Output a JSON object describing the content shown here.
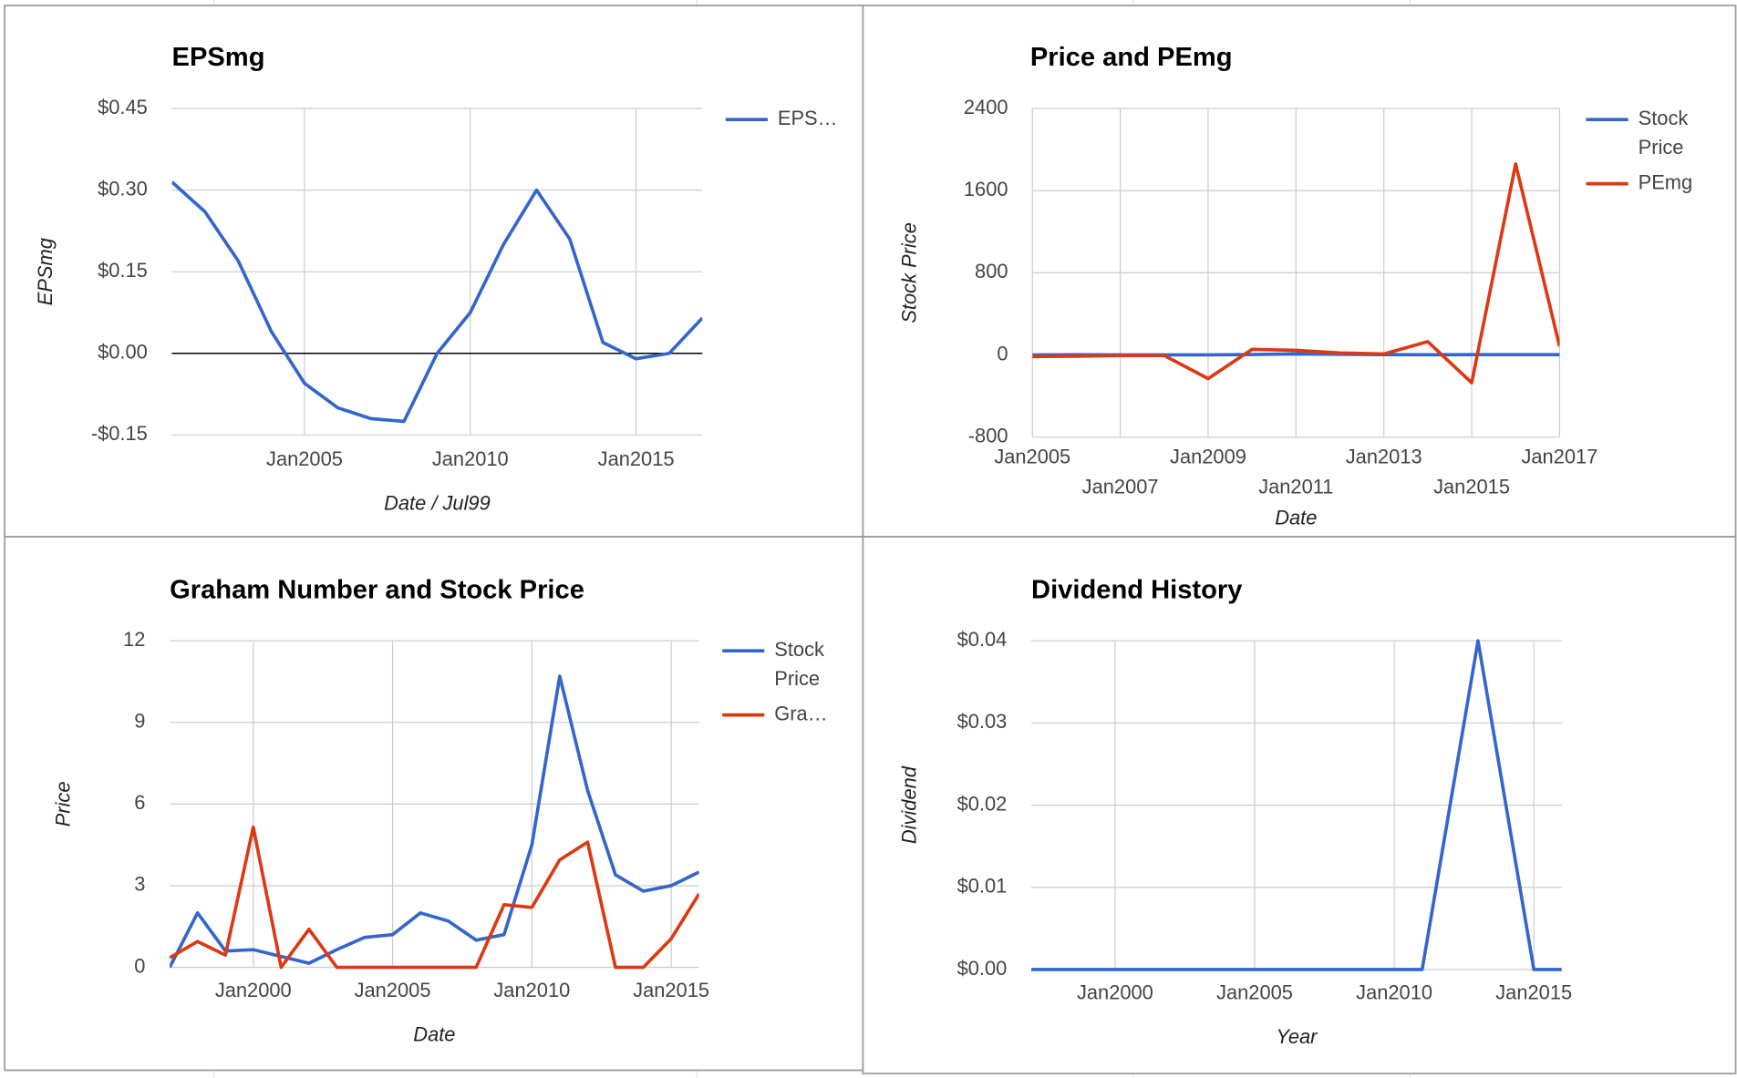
{
  "chart_data": [
    {
      "type": "line",
      "title": "EPSmg",
      "x_label": "Date / Jul99",
      "y_label": "EPSmg",
      "x": [
        2001,
        2002,
        2003,
        2004,
        2005,
        2006,
        2007,
        2008,
        2009,
        2010,
        2011,
        2012,
        2013,
        2014,
        2015,
        2016,
        2017
      ],
      "series": [
        {
          "name": "EPS…",
          "color": "#3366cc",
          "values": [
            0.315,
            0.26,
            0.17,
            0.04,
            -0.055,
            -0.1,
            -0.12,
            -0.125,
            0.0,
            0.075,
            0.2,
            0.3,
            0.21,
            0.02,
            -0.01,
            0.0,
            0.065
          ]
        }
      ],
      "xlim": [
        2001,
        2017
      ],
      "xticks": [
        {
          "value": 2005,
          "label": "Jan2005"
        },
        {
          "value": 2010,
          "label": "Jan2010"
        },
        {
          "value": 2015,
          "label": "Jan2015"
        }
      ],
      "ylim": [
        -0.15,
        0.45
      ],
      "yticks": [
        {
          "value": -0.15,
          "label": "-$0.15"
        },
        {
          "value": 0,
          "label": "$0.00"
        },
        {
          "value": 0.15,
          "label": "$0.15"
        },
        {
          "value": 0.3,
          "label": "$0.30"
        },
        {
          "value": 0.45,
          "label": "$0.45"
        }
      ],
      "grid": true,
      "zero_line": true,
      "legend": "right"
    },
    {
      "type": "line",
      "title": "Price and PEmg",
      "x_label": "Date",
      "y_label": "Stock Price",
      "x": [
        2005,
        2006,
        2007,
        2008,
        2009,
        2010,
        2011,
        2012,
        2013,
        2014,
        2015,
        2016,
        2017
      ],
      "series": [
        {
          "name": "Stock Price",
          "color": "#3366cc",
          "values": [
            1.2,
            2.0,
            1.7,
            1.0,
            1.2,
            4.5,
            10.7,
            6.5,
            3.4,
            2.8,
            3.0,
            3.5,
            3.5
          ]
        },
        {
          "name": "PEmg",
          "color": "#dc3912",
          "values": [
            -15,
            -12,
            -5,
            -5,
            -230,
            55,
            45,
            20,
            10,
            130,
            -270,
            1860,
            85
          ]
        }
      ],
      "xlim": [
        2005,
        2017
      ],
      "xticks": [
        {
          "value": 2005,
          "label": "Jan2005"
        },
        {
          "value": 2007,
          "label": "Jan2007"
        },
        {
          "value": 2009,
          "label": "Jan2009"
        },
        {
          "value": 2011,
          "label": "Jan2011"
        },
        {
          "value": 2013,
          "label": "Jan2013"
        },
        {
          "value": 2015,
          "label": "Jan2015"
        },
        {
          "value": 2017,
          "label": "Jan2017"
        }
      ],
      "ylim": [
        -800,
        2400
      ],
      "yticks": [
        -800,
        0,
        800,
        1600,
        2400
      ],
      "grid": true,
      "zero_line": false,
      "legend": "right"
    },
    {
      "type": "line",
      "title": "Graham Number and Stock Price",
      "x_label": "Date",
      "y_label": "Price",
      "x": [
        1997,
        1998,
        1999,
        2000,
        2001,
        2002,
        2003,
        2004,
        2005,
        2006,
        2007,
        2008,
        2009,
        2010,
        2011,
        2012,
        2013,
        2014,
        2015,
        2016
      ],
      "series": [
        {
          "name": "Stock Price",
          "color": "#3366cc",
          "values": [
            0,
            2.0,
            0.6,
            0.65,
            0.4,
            0.15,
            0.65,
            1.1,
            1.2,
            2.0,
            1.7,
            1.0,
            1.2,
            4.5,
            10.7,
            6.5,
            3.4,
            2.8,
            3.0,
            3.5
          ]
        },
        {
          "name": "Gra…",
          "color": "#dc3912",
          "values": [
            0.35,
            0.95,
            0.45,
            5.15,
            0,
            1.4,
            0,
            0,
            0,
            0,
            0,
            0,
            2.3,
            2.2,
            3.95,
            4.6,
            0,
            0,
            1.05,
            2.7
          ]
        }
      ],
      "xlim": [
        1997,
        2016
      ],
      "xticks": [
        {
          "value": 2000,
          "label": "Jan2000"
        },
        {
          "value": 2005,
          "label": "Jan2005"
        },
        {
          "value": 2010,
          "label": "Jan2010"
        },
        {
          "value": 2015,
          "label": "Jan2015"
        }
      ],
      "ylim": [
        0,
        12
      ],
      "yticks": [
        0,
        3,
        6,
        9,
        12
      ],
      "grid": true,
      "zero_line": false,
      "legend": "right"
    },
    {
      "type": "line",
      "title": "Dividend History",
      "x_label": "Year",
      "y_label": "Dividend",
      "x": [
        1997,
        1998,
        1999,
        2000,
        2001,
        2002,
        2003,
        2004,
        2005,
        2006,
        2007,
        2008,
        2009,
        2010,
        2011,
        2012,
        2013,
        2014,
        2015,
        2016
      ],
      "series": [
        {
          "color": "#3366cc",
          "values": [
            0,
            0,
            0,
            0,
            0,
            0,
            0,
            0,
            0,
            0,
            0,
            0,
            0,
            0,
            0,
            0.02,
            0.04,
            0.02,
            0,
            0
          ]
        }
      ],
      "xlim": [
        1997,
        2016
      ],
      "xticks": [
        {
          "value": 2000,
          "label": "Jan2000"
        },
        {
          "value": 2005,
          "label": "Jan2005"
        },
        {
          "value": 2010,
          "label": "Jan2010"
        },
        {
          "value": 2015,
          "label": "Jan2015"
        }
      ],
      "ylim": [
        0,
        0.04
      ],
      "yticks": [
        {
          "value": 0,
          "label": "$0.00"
        },
        {
          "value": 0.01,
          "label": "$0.01"
        },
        {
          "value": 0.02,
          "label": "$0.02"
        },
        {
          "value": 0.03,
          "label": "$0.03"
        },
        {
          "value": 0.04,
          "label": "$0.04"
        }
      ],
      "grid": true,
      "zero_line": false
    }
  ]
}
